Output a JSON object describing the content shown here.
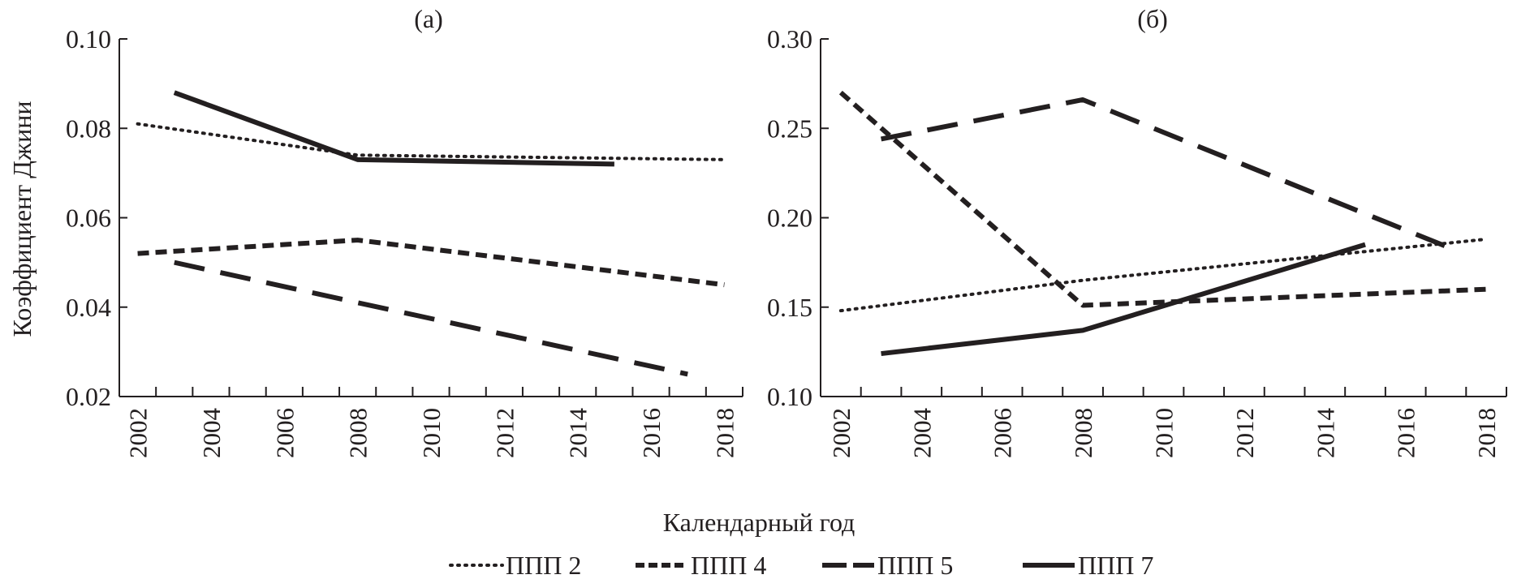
{
  "chart_data": [
    {
      "type": "line",
      "title": "(а)",
      "xlabel": "Календарный год",
      "ylabel": "Коэффициент Джини",
      "ylim": [
        0.02,
        0.1
      ],
      "yticks": [
        "0.02",
        "0.04",
        "0.06",
        "0.08",
        "0.10"
      ],
      "xlim": [
        2002,
        2018
      ],
      "xticks": [
        "2002",
        "2004",
        "2006",
        "2008",
        "2010",
        "2012",
        "2014",
        "2016",
        "2018"
      ],
      "grid": false,
      "series": [
        {
          "name": "ППП 2",
          "style": "dotted",
          "x": [
            2002,
            2008,
            2018
          ],
          "y": [
            0.081,
            0.074,
            0.073
          ]
        },
        {
          "name": "ППП 4",
          "style": "short-dash",
          "x": [
            2002,
            2008,
            2018
          ],
          "y": [
            0.052,
            0.055,
            0.045
          ]
        },
        {
          "name": "ППП 5",
          "style": "long-dash",
          "x": [
            2003,
            2008,
            2017
          ],
          "y": [
            0.05,
            0.041,
            0.025
          ]
        },
        {
          "name": "ППП 7",
          "style": "solid",
          "x": [
            2003,
            2008,
            2015
          ],
          "y": [
            0.088,
            0.073,
            0.072
          ]
        }
      ]
    },
    {
      "type": "line",
      "title": "(б)",
      "xlabel": "Календарный год",
      "ylim": [
        0.1,
        0.3
      ],
      "yticks": [
        "0.10",
        "0.15",
        "0.20",
        "0.25",
        "0.30"
      ],
      "xlim": [
        2002,
        2018
      ],
      "xticks": [
        "2002",
        "2004",
        "2006",
        "2008",
        "2010",
        "2012",
        "2014",
        "2016",
        "2018"
      ],
      "grid": false,
      "series": [
        {
          "name": "ППП 2",
          "style": "dotted",
          "x": [
            2002,
            2008,
            2018
          ],
          "y": [
            0.148,
            0.165,
            0.188
          ]
        },
        {
          "name": "ППП 4",
          "style": "short-dash",
          "x": [
            2002,
            2008,
            2018
          ],
          "y": [
            0.27,
            0.151,
            0.16
          ]
        },
        {
          "name": "ППП 5",
          "style": "long-dash",
          "x": [
            2003,
            2008,
            2017
          ],
          "y": [
            0.244,
            0.266,
            0.184
          ]
        },
        {
          "name": "ППП 7",
          "style": "solid",
          "x": [
            2003,
            2008,
            2015
          ],
          "y": [
            0.124,
            0.137,
            0.185
          ]
        }
      ]
    }
  ],
  "legend": {
    "position": "bottom",
    "items": [
      {
        "label": "ППП 2",
        "style": "dotted"
      },
      {
        "label": "ППП 4",
        "style": "short-dash"
      },
      {
        "label": "ППП 5",
        "style": "long-dash"
      },
      {
        "label": "ППП 7",
        "style": "solid"
      }
    ]
  },
  "colors": {
    "ink": "#231f20",
    "background": "#ffffff"
  }
}
